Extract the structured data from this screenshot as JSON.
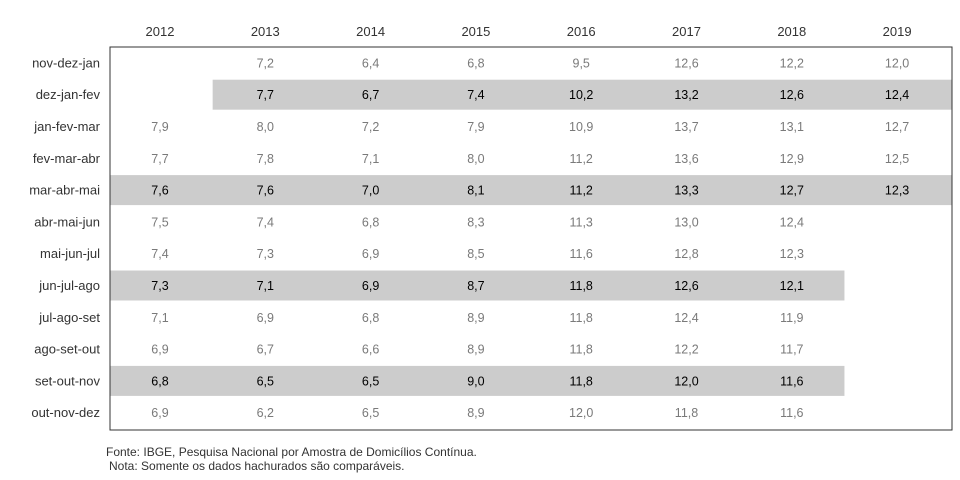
{
  "chart_data": {
    "type": "table",
    "columns": [
      "2012",
      "2013",
      "2014",
      "2015",
      "2016",
      "2017",
      "2018",
      "2019"
    ],
    "rows": [
      {
        "label": "nov-dez-jan",
        "highlight": false,
        "values": [
          "",
          "7,2",
          "6,4",
          "6,8",
          "9,5",
          "12,6",
          "12,2",
          "12,0"
        ]
      },
      {
        "label": "dez-jan-fev",
        "highlight": true,
        "highlight_from_col": 1,
        "values": [
          "",
          "7,7",
          "6,7",
          "7,4",
          "10,2",
          "13,2",
          "12,6",
          "12,4"
        ]
      },
      {
        "label": "jan-fev-mar",
        "highlight": false,
        "values": [
          "7,9",
          "8,0",
          "7,2",
          "7,9",
          "10,9",
          "13,7",
          "13,1",
          "12,7"
        ]
      },
      {
        "label": "fev-mar-abr",
        "highlight": false,
        "values": [
          "7,7",
          "7,8",
          "7,1",
          "8,0",
          "11,2",
          "13,6",
          "12,9",
          "12,5"
        ]
      },
      {
        "label": "mar-abr-mai",
        "highlight": true,
        "values": [
          "7,6",
          "7,6",
          "7,0",
          "8,1",
          "11,2",
          "13,3",
          "12,7",
          "12,3"
        ]
      },
      {
        "label": "abr-mai-jun",
        "highlight": false,
        "values": [
          "7,5",
          "7,4",
          "6,8",
          "8,3",
          "11,3",
          "13,0",
          "12,4",
          ""
        ]
      },
      {
        "label": "mai-jun-jul",
        "highlight": false,
        "values": [
          "7,4",
          "7,3",
          "6,9",
          "8,5",
          "11,6",
          "12,8",
          "12,3",
          ""
        ]
      },
      {
        "label": "jun-jul-ago",
        "highlight": true,
        "values": [
          "7,3",
          "7,1",
          "6,9",
          "8,7",
          "11,8",
          "12,6",
          "12,1",
          ""
        ]
      },
      {
        "label": "jul-ago-set",
        "highlight": false,
        "values": [
          "7,1",
          "6,9",
          "6,8",
          "8,9",
          "11,8",
          "12,4",
          "11,9",
          ""
        ]
      },
      {
        "label": "ago-set-out",
        "highlight": false,
        "values": [
          "6,9",
          "6,7",
          "6,6",
          "8,9",
          "11,8",
          "12,2",
          "11,7",
          ""
        ]
      },
      {
        "label": "set-out-nov",
        "highlight": true,
        "values": [
          "6,8",
          "6,5",
          "6,5",
          "9,0",
          "11,8",
          "12,0",
          "11,6",
          ""
        ]
      },
      {
        "label": "out-nov-dez",
        "highlight": false,
        "values": [
          "6,9",
          "6,2",
          "6,5",
          "8,9",
          "12,0",
          "11,8",
          "11,6",
          ""
        ]
      }
    ],
    "colors": {
      "highlight": "#cccccc",
      "border": "#333333",
      "dim_text": "#7a7a7a",
      "bold_text": "#000000"
    }
  },
  "footer": {
    "source": "Fonte: IBGE, Pesquisa Nacional por Amostra de Domicílios Contínua.",
    "note": "Nota: Somente os dados hachurados são comparáveis."
  }
}
